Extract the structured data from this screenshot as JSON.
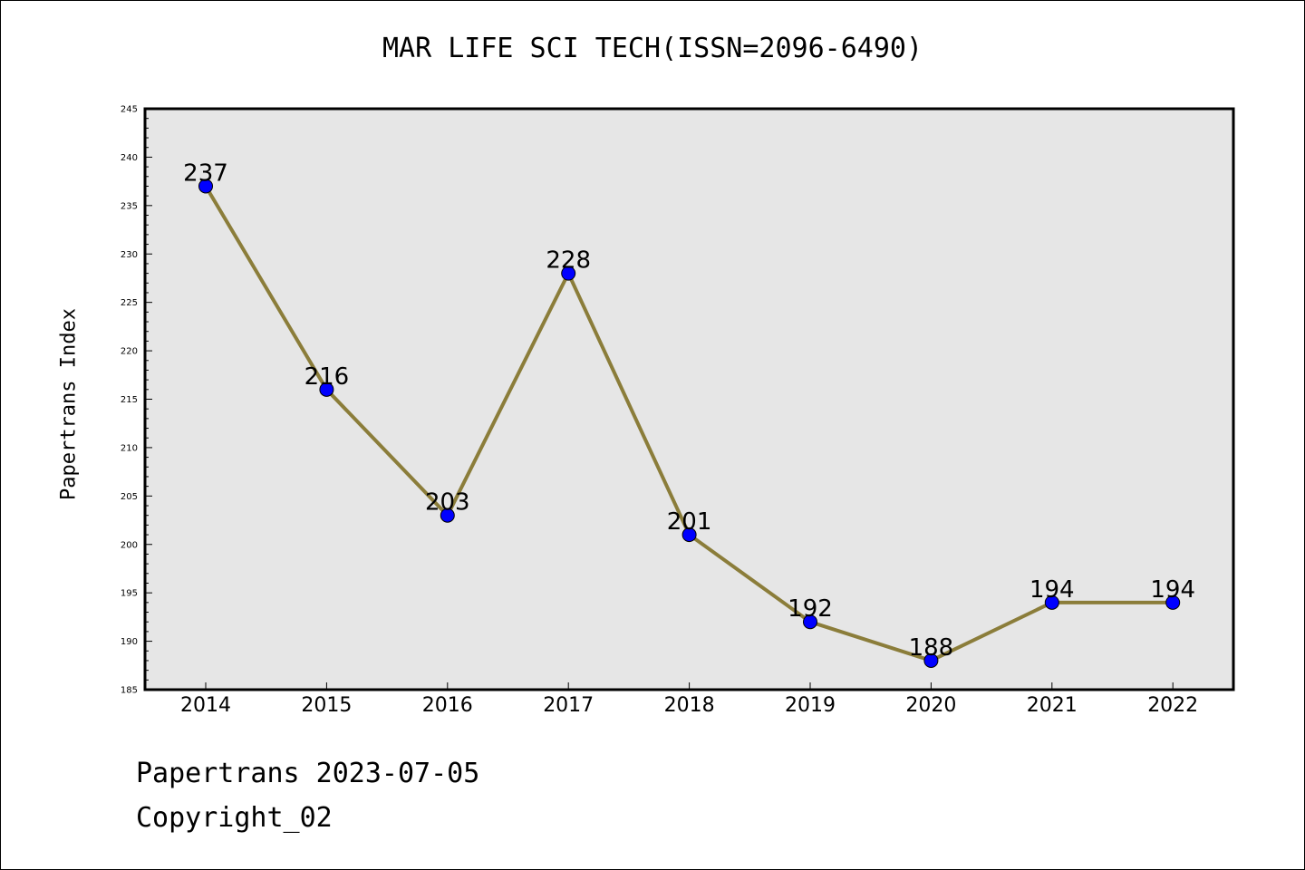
{
  "chart_data": {
    "type": "line",
    "title": "MAR LIFE SCI TECH(ISSN=2096-6490)",
    "xlabel": "",
    "ylabel": "Papertrans Index",
    "categories": [
      "2014",
      "2015",
      "2016",
      "2017",
      "2018",
      "2019",
      "2020",
      "2021",
      "2022"
    ],
    "series": [
      {
        "values": [
          237,
          216,
          203,
          228,
          201,
          192,
          188,
          194,
          194
        ]
      }
    ],
    "ylim": [
      185,
      245
    ],
    "yticks": [
      185,
      190,
      195,
      200,
      205,
      210,
      215,
      220,
      225,
      230,
      235,
      240,
      245
    ],
    "grid": false,
    "legend": "none",
    "colors": {
      "line": "#8b7d3a",
      "marker": "#0000ff",
      "plot_background": "#e6e6e6"
    }
  },
  "footer": {
    "date_text": "Papertrans 2023-07-05",
    "copyright_text": "Copyright_02"
  }
}
